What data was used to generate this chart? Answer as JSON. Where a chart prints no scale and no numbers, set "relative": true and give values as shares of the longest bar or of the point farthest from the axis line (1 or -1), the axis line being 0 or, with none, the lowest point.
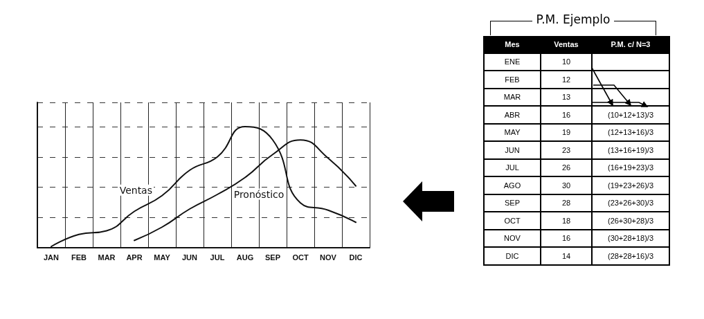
{
  "chart_data": [
    {
      "type": "line",
      "relative": true,
      "grid": true,
      "marker": "none",
      "line_style": "solid",
      "legend": false,
      "categories": [
        "JAN",
        "FEB",
        "MAR",
        "APR",
        "MAY",
        "JUN",
        "JUL",
        "AUG",
        "SEP",
        "OCT",
        "NOV",
        "DIC"
      ],
      "series": [
        {
          "name": "Ventas",
          "color": "#111111",
          "values": [
            0.01,
            0.11,
            0.14,
            0.3,
            0.43,
            0.64,
            0.75,
            1,
            0.89,
            0.37,
            0.31,
            0.21
          ]
        },
        {
          "name": "Pronóstico",
          "color": "#111111",
          "values": [
            null,
            null,
            null,
            0.06,
            0.17,
            0.32,
            0.44,
            0.58,
            0.77,
            0.89,
            0.74,
            0.51
          ]
        }
      ]
    },
    {
      "type": "other",
      "title": "P.M. Ejemplo",
      "xlabel": "Mes",
      "data_labels": true,
      "categories": [
        "ENE",
        "FEB",
        "MAR",
        "ABR",
        "MAY",
        "JUN",
        "JUL",
        "AGO",
        "SEP",
        "OCT",
        "NOV",
        "DIC"
      ],
      "series": [
        {
          "name": "Ventas",
          "values": [
            10,
            12,
            13,
            16,
            19,
            23,
            26,
            30,
            28,
            18,
            16,
            14
          ]
        },
        {
          "name": "P.M. c/ N=3",
          "values": [
            null,
            null,
            null,
            null,
            null,
            null,
            null,
            null,
            null,
            null,
            null,
            null
          ],
          "value_labels": [
            null,
            null,
            null,
            "(10+12+13)/3",
            "(12+13+16)/3",
            "(13+16+19)/3",
            "(16+19+23)/3",
            "(19+23+26)/3",
            "(23+26+30)/3",
            "(26+30+28)/3",
            "(30+28+18)/3",
            "(28+28+16)/3"
          ]
        }
      ]
    }
  ]
}
